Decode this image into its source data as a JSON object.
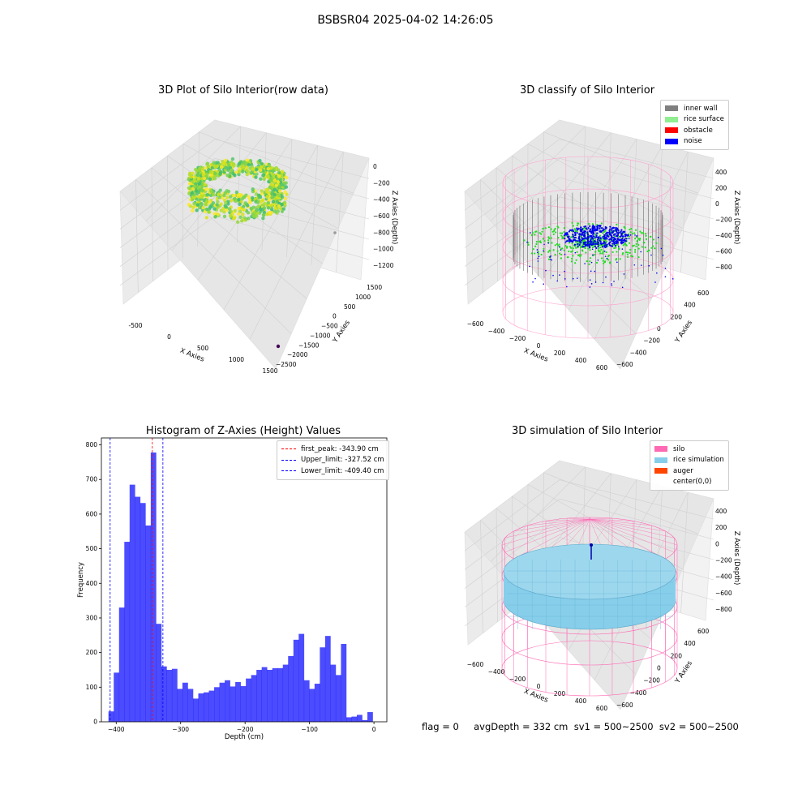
{
  "figure": {
    "suptitle": "BSBSR04 2025-04-02 14:26:05",
    "footer": "flag = 0     avgDepth = 332 cm  sv1 = 500~2500  sv2 = 500~2500"
  },
  "panels": {
    "raw": {
      "title": "3D Plot of Silo Interior(row data)",
      "xlabel": "X Axies",
      "ylabel": "Y Axies",
      "zlabel": "Z Axies (Depth)",
      "xticks": [
        "-500",
        "0",
        "500",
        "1000",
        "1500"
      ],
      "yticks": [
        "1500",
        "1000",
        "500",
        "0",
        "−500",
        "−1000",
        "−1500",
        "−2000",
        "−2500"
      ],
      "zticks": [
        "0",
        "−200",
        "−400",
        "−600",
        "−800",
        "−1000",
        "−1200"
      ]
    },
    "classify": {
      "title": "3D classify of Silo Interior",
      "xlabel": "X Axies",
      "ylabel": "Y Axies",
      "zlabel": "Z Axies (Depth)",
      "xticks": [
        "−600",
        "−400",
        "−200",
        "0",
        "200",
        "400",
        "600"
      ],
      "yticks": [
        "600",
        "400",
        "200",
        "0",
        "−200",
        "−400",
        "−600"
      ],
      "zticks": [
        "400",
        "200",
        "0",
        "−200",
        "−400",
        "−600",
        "−800"
      ],
      "legend": [
        {
          "label": "inner wall",
          "color": "#808080"
        },
        {
          "label": "rice surface",
          "color": "#90ee90"
        },
        {
          "label": "obstacle",
          "color": "#ff0000"
        },
        {
          "label": "noise",
          "color": "#0000ff"
        }
      ]
    },
    "simulation": {
      "title": "3D simulation of Silo Interior",
      "xlabel": "X Axies",
      "ylabel": "Y Axies",
      "zlabel": "Z Axies (Depth)",
      "xticks": [
        "−600",
        "−400",
        "−200",
        "0",
        "200",
        "400",
        "600"
      ],
      "yticks": [
        "600",
        "400",
        "200",
        "0",
        "−200",
        "−400",
        "−600"
      ],
      "zticks": [
        "400",
        "200",
        "0",
        "−200",
        "−400",
        "−600",
        "−800"
      ],
      "legend": [
        {
          "label": "silo",
          "color": "#ff69b4"
        },
        {
          "label": "rice simulation",
          "color": "#87ceeb"
        },
        {
          "label": "auger",
          "color": "#ff4500"
        },
        {
          "label": "center(0,0)",
          "color": ""
        }
      ]
    }
  },
  "chart_data": {
    "type": "bar",
    "title": "Histogram of Z-Axies (Height) Values",
    "xlabel": "Depth (cm)",
    "ylabel": "Frequency",
    "xlim": [
      -423,
      20
    ],
    "ylim": [
      0,
      820
    ],
    "xticks": [
      -400,
      -300,
      -200,
      -100,
      0
    ],
    "yticks": [
      0,
      100,
      200,
      300,
      400,
      500,
      600,
      700,
      800
    ],
    "bar_color": "#0000ff",
    "bin_start": -412,
    "bin_width": 8.2,
    "values": [
      30,
      142,
      330,
      520,
      685,
      650,
      632,
      567,
      778,
      283,
      160,
      150,
      153,
      95,
      113,
      95,
      67,
      82,
      85,
      90,
      100,
      113,
      120,
      102,
      115,
      103,
      125,
      135,
      150,
      158,
      150,
      155,
      155,
      165,
      190,
      237,
      254,
      120,
      95,
      110,
      215,
      248,
      165,
      135,
      225,
      13,
      15,
      20,
      5,
      28
    ],
    "lines": [
      {
        "label": "first_peak: -343.90 cm",
        "x": -343.9,
        "color": "#ff0000"
      },
      {
        "label": "Upper_limit: -327.52 cm",
        "x": -327.52,
        "color": "#0000ff"
      },
      {
        "label": "Lower_limit: -409.40 cm",
        "x": -409.4,
        "color": "#0000ff"
      }
    ],
    "legend_position": "upper right"
  }
}
